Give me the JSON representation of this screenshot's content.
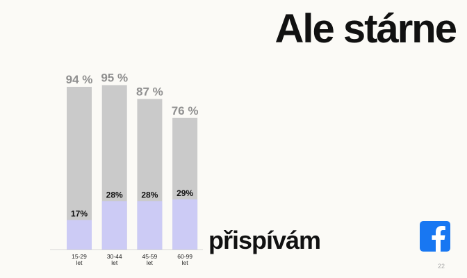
{
  "slide": {
    "title": "Ale stárne",
    "caption": "přispívám",
    "page_number": "22",
    "logo": "facebook-icon"
  },
  "colors": {
    "background": "#fbfaf6",
    "total_bar": "#cacaca",
    "contributing_bar": "#cccbf5",
    "total_label": "#8f8f8f",
    "contributing_label": "#111111",
    "facebook_blue": "#1877f2"
  },
  "chart_data": {
    "type": "bar",
    "categories": [
      [
        "15-29",
        "let"
      ],
      [
        "30-44",
        "let"
      ],
      [
        "45-59",
        "let"
      ],
      [
        "60-99",
        "let"
      ]
    ],
    "series": [
      {
        "values": [
          94,
          95,
          87,
          76
        ],
        "labels": [
          "94 %",
          "95 %",
          "87 %",
          "76 %"
        ]
      },
      {
        "values": [
          17,
          28,
          28,
          29
        ],
        "labels": [
          "17%",
          "28%",
          "28%",
          "29%"
        ]
      }
    ],
    "ylim": [
      0,
      100
    ],
    "grid": false,
    "legend": "none",
    "title": "",
    "xlabel": "",
    "ylabel": ""
  }
}
